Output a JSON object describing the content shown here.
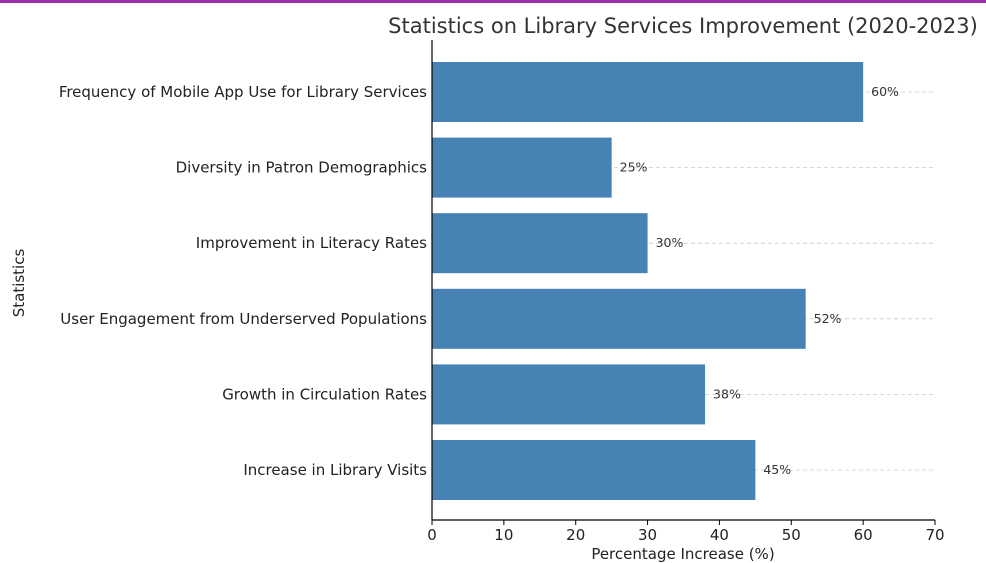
{
  "colors": {
    "bar": "#4682b4",
    "grid": "#cccccc",
    "top_rule": "#9b2fae",
    "axis": "#000000"
  },
  "chart_data": {
    "type": "bar",
    "orientation": "horizontal",
    "title": "Statistics on Library Services Improvement (2020-2023)",
    "xlabel": "Percentage Increase (%)",
    "ylabel": "Statistics",
    "categories": [
      "Frequency of Mobile App Use for Library Services",
      "Diversity in Patron Demographics",
      "Improvement in Literacy Rates",
      "User Engagement from Underserved Populations",
      "Growth in Circulation Rates",
      "Increase in Library Visits"
    ],
    "values": [
      60,
      25,
      30,
      52,
      38,
      45
    ],
    "value_labels": [
      "60%",
      "25%",
      "30%",
      "52%",
      "38%",
      "45%"
    ],
    "xlim": [
      0,
      70
    ],
    "xticks": [
      0,
      10,
      20,
      30,
      40,
      50,
      60,
      70
    ],
    "grid": "x-dashed"
  }
}
